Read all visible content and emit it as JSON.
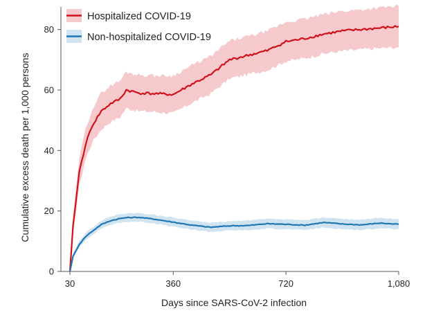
{
  "chart_data": {
    "type": "line",
    "title": "",
    "xlabel": "Days since SARS-CoV-2 infection",
    "ylabel": "Cumulative excess death per 1,000 persons",
    "xlim": [
      30,
      1080
    ],
    "ylim": [
      0,
      87
    ],
    "xticks": [
      30,
      360,
      720,
      1080
    ],
    "xtick_labels": [
      "30",
      "360",
      "720",
      "1,080"
    ],
    "yticks": [
      0,
      20,
      40,
      60,
      80
    ],
    "ytick_labels": [
      "0",
      "20",
      "40",
      "60",
      "80"
    ],
    "grid": false,
    "legend_position": "top-left",
    "x": [
      30,
      40,
      60,
      80,
      100,
      130,
      160,
      190,
      210,
      250,
      300,
      360,
      420,
      480,
      540,
      600,
      660,
      720,
      780,
      840,
      900,
      960,
      1020,
      1080
    ],
    "series": [
      {
        "name": "Hospitalized COVID-19",
        "color": "#d0101a",
        "band_color": "#f6c9cc",
        "values": [
          0,
          15,
          33,
          42,
          48,
          53,
          55.5,
          57,
          60,
          59,
          58.8,
          58.5,
          62,
          65,
          70,
          71.5,
          73,
          76,
          77,
          78.5,
          79.5,
          80,
          80.5,
          81
        ],
        "lower": [
          0,
          12,
          28.5,
          37,
          42.5,
          47,
          49.5,
          51,
          54,
          53,
          52.8,
          52.3,
          55.8,
          58.8,
          63.8,
          65.2,
          66.6,
          69.5,
          70.5,
          72,
          72.9,
          73.4,
          73.8,
          74.2
        ],
        "upper": [
          0,
          18,
          37.5,
          47,
          53.5,
          59,
          61.5,
          63,
          66,
          65,
          64.8,
          64.7,
          68.2,
          71.2,
          76.2,
          77.8,
          79.4,
          82.5,
          83.5,
          85,
          86.1,
          86.6,
          87.2,
          87.8
        ]
      },
      {
        "name": "Non-hospitalized COVID-19",
        "color": "#1f77b4",
        "band_color": "#cfe3f0",
        "values": [
          0,
          5,
          9,
          11.5,
          13.2,
          15.5,
          16.8,
          17.5,
          17.8,
          17.9,
          17.3,
          16.3,
          15.3,
          14.6,
          15.1,
          15.2,
          15.8,
          15.6,
          15.3,
          16.2,
          15.7,
          15.4,
          16,
          15.6
        ],
        "lower": [
          0,
          4.2,
          8,
          10.4,
          12,
          14.2,
          15.4,
          16.1,
          16.4,
          16.5,
          15.9,
          14.8,
          13.8,
          13.1,
          13.6,
          13.6,
          14.2,
          14,
          13.7,
          14.5,
          14,
          13.7,
          14.3,
          13.9
        ],
        "upper": [
          0,
          5.8,
          10,
          12.6,
          14.4,
          16.8,
          18.2,
          18.9,
          19.2,
          19.3,
          18.7,
          17.8,
          16.8,
          16.1,
          16.6,
          16.8,
          17.4,
          17.2,
          16.9,
          17.9,
          17.4,
          17.1,
          17.7,
          17.3
        ]
      }
    ]
  }
}
